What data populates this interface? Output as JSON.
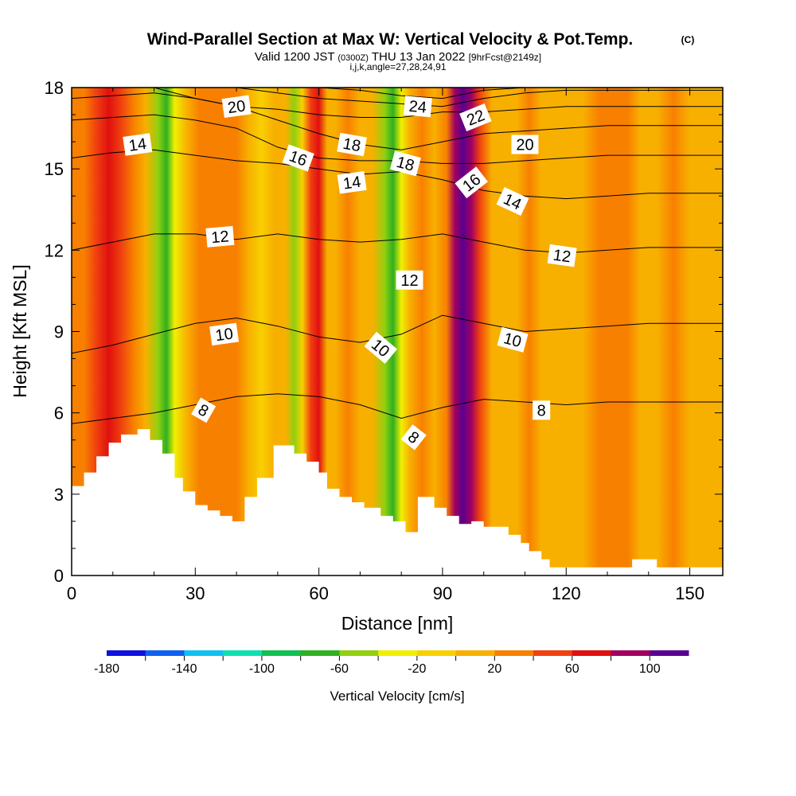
{
  "chart_data": {
    "type": "heatmap",
    "title": "Wind-Parallel Section at Max W: Vertical Velocity & Pot.Temp.",
    "title_mark": "(C)",
    "subtitle_parts": [
      "Valid 1200 JST ",
      "(0300Z)",
      " THU 13 Jan 2022 ",
      "[9hrFcst@2149z]"
    ],
    "subtitle2": "i,j,k,angle=27,28,24,91",
    "xlabel": "Distance [nm]",
    "ylabel": "Height [Kft MSL]",
    "xlim": [
      0,
      158
    ],
    "ylim": [
      0,
      18
    ],
    "x_ticks": [
      "0",
      "30",
      "60",
      "90",
      "120",
      "150"
    ],
    "y_ticks": [
      "0",
      "3",
      "6",
      "9",
      "12",
      "15",
      "18"
    ],
    "colorbar": {
      "label": "Vertical Velocity [cm/s]",
      "tick_labels": [
        "-180",
        "-140",
        "-100",
        "-60",
        "-20",
        "20",
        "60",
        "100"
      ],
      "colors": [
        "#1010e0",
        "#1060f0",
        "#10c0f0",
        "#10e0b0",
        "#10c050",
        "#30b020",
        "#90d010",
        "#f0f000",
        "#f8d000",
        "#f8b000",
        "#f88000",
        "#f04010",
        "#e01010",
        "#a00060",
        "#5a0090"
      ]
    },
    "terrain": {
      "x": [
        0,
        3,
        3,
        6,
        6,
        9,
        9,
        12,
        12,
        16,
        16,
        19,
        19,
        22,
        22,
        25,
        25,
        27,
        27,
        30,
        30,
        33,
        33,
        36,
        36,
        39,
        39,
        42,
        42,
        45,
        45,
        49,
        49,
        54,
        54,
        57,
        57,
        60,
        60,
        62,
        62,
        65,
        65,
        68,
        68,
        71,
        71,
        75,
        75,
        78,
        78,
        81,
        81,
        84,
        84,
        88,
        88,
        91,
        91,
        94,
        94,
        97,
        97,
        100,
        100,
        106,
        106,
        109,
        109,
        111,
        111,
        114,
        114,
        116,
        116,
        120,
        120,
        136,
        136,
        142,
        142,
        146,
        146,
        152,
        152,
        158
      ],
      "y": [
        3.3,
        3.3,
        3.8,
        3.8,
        4.4,
        4.4,
        4.9,
        4.9,
        5.2,
        5.2,
        5.4,
        5.4,
        5.0,
        5.0,
        4.5,
        4.5,
        3.6,
        3.6,
        3.1,
        3.1,
        2.6,
        2.6,
        2.4,
        2.4,
        2.2,
        2.2,
        2.0,
        2.0,
        2.9,
        2.9,
        3.6,
        3.6,
        4.8,
        4.8,
        4.5,
        4.5,
        4.2,
        4.2,
        3.8,
        3.8,
        3.2,
        3.2,
        2.9,
        2.9,
        2.7,
        2.7,
        2.5,
        2.5,
        2.2,
        2.2,
        2.0,
        2.0,
        1.6,
        1.6,
        2.9,
        2.9,
        2.5,
        2.5,
        2.2,
        2.2,
        1.9,
        1.9,
        2.0,
        2.0,
        1.8,
        1.8,
        1.5,
        1.5,
        1.2,
        1.2,
        0.9,
        0.9,
        0.6,
        0.6,
        0.3,
        0.3,
        0.3,
        0.3,
        0.6,
        0.6,
        0.3,
        0.3,
        0.3,
        0.3,
        0.3,
        0.3
      ]
    },
    "w_columns": [
      {
        "x": 0,
        "w": 35
      },
      {
        "x": 3,
        "w": 28
      },
      {
        "x": 6,
        "w": 55
      },
      {
        "x": 9,
        "w": 62
      },
      {
        "x": 12,
        "w": 45
      },
      {
        "x": 15,
        "w": 24
      },
      {
        "x": 18,
        "w": 5
      },
      {
        "x": 21,
        "w": -42
      },
      {
        "x": 23,
        "w": -70
      },
      {
        "x": 25,
        "w": -30
      },
      {
        "x": 28,
        "w": 10
      },
      {
        "x": 31,
        "w": 24
      },
      {
        "x": 34,
        "w": 30
      },
      {
        "x": 37,
        "w": 28
      },
      {
        "x": 40,
        "w": 22
      },
      {
        "x": 43,
        "w": 12
      },
      {
        "x": 46,
        "w": -2
      },
      {
        "x": 49,
        "w": 6
      },
      {
        "x": 52,
        "w": 18
      },
      {
        "x": 54,
        "w": -60
      },
      {
        "x": 56,
        "w": -15
      },
      {
        "x": 58,
        "w": 40
      },
      {
        "x": 60,
        "w": 64
      },
      {
        "x": 62,
        "w": 10
      },
      {
        "x": 64,
        "w": 16
      },
      {
        "x": 67,
        "w": 22
      },
      {
        "x": 70,
        "w": 15
      },
      {
        "x": 73,
        "w": 2
      },
      {
        "x": 76,
        "w": -52
      },
      {
        "x": 78,
        "w": -72
      },
      {
        "x": 80,
        "w": -32
      },
      {
        "x": 82,
        "w": 14
      },
      {
        "x": 85,
        "w": 38
      },
      {
        "x": 88,
        "w": 18
      },
      {
        "x": 91,
        "w": 28
      },
      {
        "x": 93,
        "w": 88
      },
      {
        "x": 95,
        "w": 112
      },
      {
        "x": 97,
        "w": 92
      },
      {
        "x": 99,
        "w": 46
      },
      {
        "x": 102,
        "w": 18
      },
      {
        "x": 105,
        "w": 6
      },
      {
        "x": 108,
        "w": 12
      },
      {
        "x": 111,
        "w": 20
      },
      {
        "x": 114,
        "w": 15
      },
      {
        "x": 117,
        "w": 6
      },
      {
        "x": 120,
        "w": 10
      },
      {
        "x": 124,
        "w": 18
      },
      {
        "x": 128,
        "w": 22
      },
      {
        "x": 132,
        "w": 30
      },
      {
        "x": 135,
        "w": 20
      },
      {
        "x": 138,
        "w": 8
      },
      {
        "x": 142,
        "w": 14
      },
      {
        "x": 146,
        "w": 22
      },
      {
        "x": 150,
        "w": 18
      },
      {
        "x": 154,
        "w": 10
      },
      {
        "x": 158,
        "w": 8
      }
    ],
    "theta_contours": [
      {
        "label": "8",
        "x": [
          0,
          10,
          20,
          30,
          40,
          50,
          60,
          70,
          80,
          90,
          100,
          110,
          120,
          130,
          140,
          150,
          158
        ],
        "y": [
          5.6,
          5.8,
          6.0,
          6.3,
          6.6,
          6.7,
          6.6,
          6.3,
          5.8,
          6.2,
          6.5,
          6.4,
          6.3,
          6.4,
          6.4,
          6.4,
          6.4
        ]
      },
      {
        "label": "10",
        "x": [
          0,
          10,
          20,
          30,
          40,
          50,
          60,
          70,
          80,
          90,
          100,
          110,
          120,
          130,
          140,
          150,
          158
        ],
        "y": [
          8.2,
          8.5,
          8.9,
          9.3,
          9.5,
          9.2,
          8.8,
          8.6,
          8.9,
          9.6,
          9.3,
          9.0,
          9.1,
          9.2,
          9.3,
          9.3,
          9.3
        ]
      },
      {
        "label": "12",
        "x": [
          0,
          10,
          20,
          30,
          40,
          50,
          60,
          70,
          80,
          90,
          100,
          110,
          120,
          130,
          140,
          150,
          158
        ],
        "y": [
          12.0,
          12.3,
          12.6,
          12.6,
          12.4,
          12.6,
          12.4,
          12.3,
          12.4,
          12.6,
          12.3,
          12.0,
          11.9,
          12.0,
          12.1,
          12.1,
          12.1
        ]
      },
      {
        "label": "14",
        "x": [
          0,
          10,
          20,
          30,
          40,
          50,
          60,
          70,
          80,
          90,
          100,
          110,
          120,
          130,
          140,
          150,
          158
        ],
        "y": [
          15.4,
          15.6,
          15.7,
          15.5,
          15.3,
          15.2,
          15.0,
          14.8,
          14.9,
          14.6,
          14.2,
          14.0,
          13.9,
          14.0,
          14.1,
          14.1,
          14.1
        ]
      },
      {
        "label": "16",
        "x": [
          0,
          10,
          20,
          30,
          40,
          50,
          60,
          70,
          80,
          90,
          100,
          110,
          120,
          130,
          140,
          150,
          158
        ],
        "y": [
          16.8,
          16.9,
          17.0,
          16.8,
          16.5,
          15.8,
          15.4,
          15.3,
          15.3,
          15.2,
          15.2,
          15.3,
          15.4,
          15.5,
          15.5,
          15.5,
          15.5
        ]
      },
      {
        "label": "18",
        "x": [
          0,
          10,
          20,
          30,
          40,
          50,
          60,
          70,
          80,
          90,
          100,
          110,
          120,
          130,
          140,
          150,
          158
        ],
        "y": [
          17.6,
          17.7,
          17.8,
          17.6,
          17.3,
          16.8,
          16.3,
          15.9,
          15.7,
          16.0,
          16.3,
          16.4,
          16.5,
          16.6,
          16.6,
          16.6,
          16.6
        ]
      },
      {
        "label": "20",
        "x": [
          0,
          10,
          20,
          30,
          40,
          50,
          60,
          70,
          80,
          90,
          100,
          110,
          120,
          130,
          140,
          150,
          158
        ],
        "y": [
          18.0,
          18.0,
          18.0,
          17.6,
          17.3,
          17.2,
          17.0,
          16.9,
          16.9,
          17.1,
          17.1,
          17.2,
          17.3,
          17.3,
          17.3,
          17.3,
          17.3
        ]
      },
      {
        "label": "22",
        "x": [
          0,
          10,
          20,
          30,
          40,
          50,
          60,
          70,
          80,
          90,
          100,
          110,
          120,
          130,
          140,
          150,
          158
        ],
        "y": [
          18.0,
          18.0,
          18.0,
          18.0,
          18.0,
          17.8,
          17.6,
          17.5,
          17.4,
          17.3,
          17.6,
          17.8,
          17.9,
          17.9,
          17.9,
          17.9,
          17.9
        ]
      },
      {
        "label": "24",
        "x": [
          0,
          10,
          20,
          30,
          40,
          50,
          60,
          70,
          80,
          90,
          100,
          110,
          120,
          130,
          140,
          150,
          158
        ],
        "y": [
          18.0,
          18.0,
          18.0,
          18.0,
          18.0,
          18.0,
          18.0,
          17.9,
          17.7,
          17.6,
          17.9,
          18.0,
          18.0,
          18.0,
          18.0,
          18.0,
          18.0
        ]
      }
    ],
    "contour_labels": [
      {
        "text": "20",
        "x": 40,
        "y": 17.3,
        "angle": -8
      },
      {
        "text": "24",
        "x": 84,
        "y": 17.3,
        "angle": 5
      },
      {
        "text": "22",
        "x": 98,
        "y": 16.9,
        "angle": -22
      },
      {
        "text": "14",
        "x": 16,
        "y": 15.9,
        "angle": -8
      },
      {
        "text": "18",
        "x": 68,
        "y": 15.9,
        "angle": 10
      },
      {
        "text": "20",
        "x": 110,
        "y": 15.9,
        "angle": 0
      },
      {
        "text": "16",
        "x": 55,
        "y": 15.4,
        "angle": 20
      },
      {
        "text": "18",
        "x": 81,
        "y": 15.2,
        "angle": 15
      },
      {
        "text": "14",
        "x": 68,
        "y": 14.5,
        "angle": -8
      },
      {
        "text": "16",
        "x": 97,
        "y": 14.5,
        "angle": -38
      },
      {
        "text": "14",
        "x": 107,
        "y": 13.8,
        "angle": 25
      },
      {
        "text": "12",
        "x": 36,
        "y": 12.5,
        "angle": -5
      },
      {
        "text": "12",
        "x": 119,
        "y": 11.8,
        "angle": 8
      },
      {
        "text": "12",
        "x": 82,
        "y": 10.9,
        "angle": 0
      },
      {
        "text": "10",
        "x": 37,
        "y": 8.9,
        "angle": -8
      },
      {
        "text": "10",
        "x": 75,
        "y": 8.4,
        "angle": 40
      },
      {
        "text": "10",
        "x": 107,
        "y": 8.7,
        "angle": 15
      },
      {
        "text": "8",
        "x": 32,
        "y": 6.1,
        "angle": 30
      },
      {
        "text": "8",
        "x": 83,
        "y": 5.1,
        "angle": 38
      },
      {
        "text": "8",
        "x": 114,
        "y": 6.1,
        "angle": 0
      }
    ]
  }
}
